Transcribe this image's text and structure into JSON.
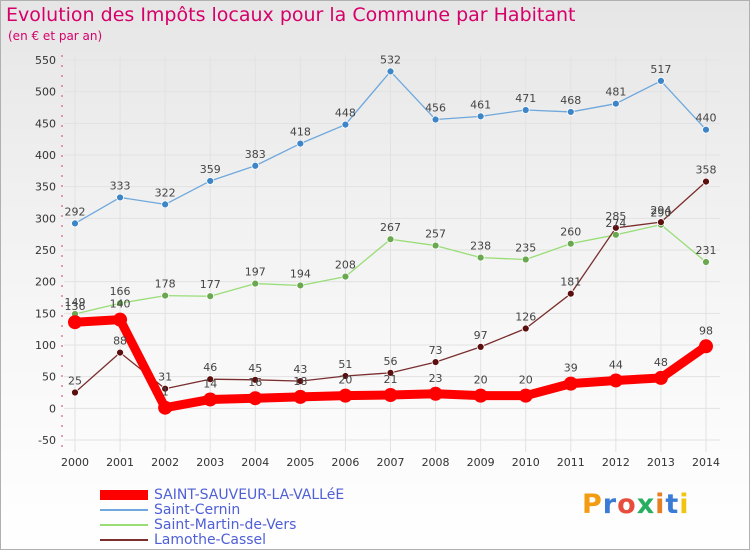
{
  "title": "Evolution des Impôts locaux pour la Commune par Habitant",
  "subtitle": "(en € et par an)",
  "logo": "Proxiti",
  "chart_data": {
    "type": "line",
    "title": "Evolution des Impôts locaux pour la Commune par Habitant",
    "subtitle": "(en € et par an)",
    "x": [
      "2000",
      "2001",
      "2002",
      "2003",
      "2004",
      "2005",
      "2006",
      "2007",
      "2008",
      "2009",
      "2010",
      "2011",
      "2012",
      "2013",
      "2014"
    ],
    "ylim": [
      -50,
      550
    ],
    "yticks": [
      "-50",
      "0",
      "50",
      "100",
      "150",
      "200",
      "250",
      "300",
      "350",
      "400",
      "450",
      "500",
      "550"
    ],
    "grid": true,
    "legend_position": "bottom-left",
    "series": [
      {
        "name": "SAINT-SAUVEUR-LA-VALLéE",
        "color": "#ff0000",
        "width": 9,
        "values": [
          136,
          140,
          1,
          14,
          16,
          18,
          20,
          21,
          23,
          20,
          20,
          39,
          44,
          48,
          98
        ],
        "labels": [
          "136",
          "140",
          "1",
          "14",
          "16",
          "18",
          "20",
          "21",
          "23",
          "20",
          "20",
          "39",
          "44",
          "48",
          "98"
        ]
      },
      {
        "name": "Saint-Cernin",
        "color": "#6fa8dc",
        "width": 1.3,
        "values": [
          292,
          333,
          322,
          359,
          383,
          418,
          448,
          532,
          456,
          461,
          471,
          468,
          481,
          517,
          440
        ],
        "labels": [
          "292",
          "333",
          "322",
          "359",
          "383",
          "418",
          "448",
          "532",
          "456",
          "461",
          "471",
          "468",
          "481",
          "517",
          "440"
        ]
      },
      {
        "name": "Saint-Martin-de-Vers",
        "color": "#99dd77",
        "width": 1.3,
        "values": [
          149,
          166,
          178,
          177,
          197,
          194,
          208,
          267,
          257,
          238,
          235,
          260,
          274,
          290,
          231
        ],
        "labels": [
          "149",
          "166",
          "178",
          "177",
          "197",
          "194",
          "208",
          "267",
          "257",
          "238",
          "235",
          "260",
          "274",
          "290",
          "231"
        ]
      },
      {
        "name": "Lamothe-Cassel",
        "color": "#7a2e2e",
        "width": 1.3,
        "values": [
          25,
          88,
          31,
          46,
          45,
          43,
          51,
          56,
          73,
          97,
          126,
          181,
          285,
          294,
          358
        ],
        "labels": [
          "25",
          "88",
          "31",
          "46",
          "45",
          "43",
          "51",
          "56",
          "73",
          "97",
          "126",
          "181",
          "285",
          "294",
          "358"
        ]
      }
    ]
  }
}
